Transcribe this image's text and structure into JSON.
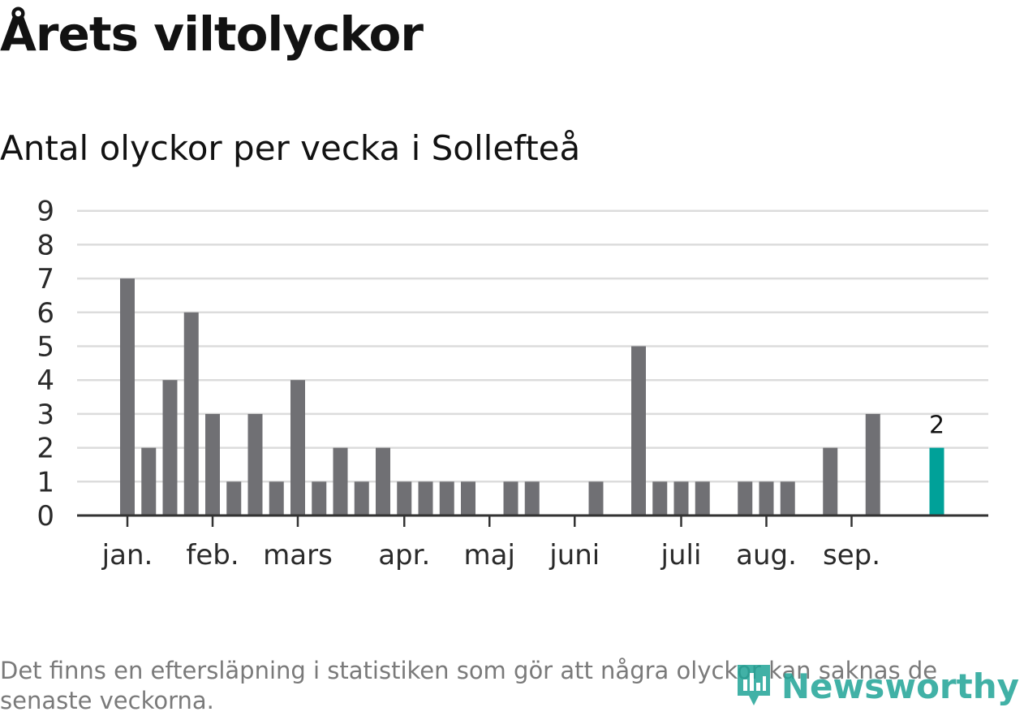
{
  "title": "Årets viltolyckor",
  "subtitle": "Antal olyckor per vecka i Sollefteå",
  "footnote": "Det finns en eftersläpning i statistiken som gör att några olyckor kan saknas de senaste veckorna.",
  "brand": {
    "name": "Newsworthy",
    "icon": "newsworthy-logo-icon"
  },
  "colors": {
    "bar": "#707074",
    "highlight": "#00a199",
    "grid": "#dcdcdc",
    "axis": "#333333",
    "text": "#121212"
  },
  "chart_data": {
    "type": "bar",
    "title": "Antal olyckor per vecka i Sollefteå",
    "xlabel": "",
    "ylabel": "",
    "ylim": [
      0,
      9
    ],
    "yticks": [
      "0",
      "1",
      "2",
      "3",
      "4",
      "5",
      "6",
      "7",
      "8",
      "9"
    ],
    "weeks": [
      1,
      2,
      3,
      4,
      5,
      6,
      7,
      8,
      9,
      10,
      11,
      12,
      13,
      14,
      15,
      16,
      17,
      18,
      19,
      20,
      21,
      22,
      23,
      24,
      25,
      26,
      27,
      28,
      29,
      30,
      31,
      32,
      33,
      34,
      35,
      36,
      37,
      38,
      39
    ],
    "values": [
      7,
      2,
      4,
      6,
      3,
      1,
      3,
      1,
      4,
      1,
      2,
      1,
      2,
      1,
      1,
      1,
      1,
      0,
      1,
      1,
      0,
      0,
      1,
      0,
      5,
      1,
      1,
      1,
      0,
      1,
      1,
      1,
      0,
      2,
      0,
      3,
      0,
      0,
      2
    ],
    "highlight_index": 38,
    "highlight_label": "2",
    "month_labels": [
      {
        "label": "jan.",
        "week": 1
      },
      {
        "label": "feb.",
        "week": 5
      },
      {
        "label": "mars",
        "week": 9
      },
      {
        "label": "apr.",
        "week": 14
      },
      {
        "label": "maj",
        "week": 18
      },
      {
        "label": "juni",
        "week": 22
      },
      {
        "label": "juli",
        "week": 27
      },
      {
        "label": "aug.",
        "week": 31
      },
      {
        "label": "sep.",
        "week": 35
      }
    ]
  }
}
